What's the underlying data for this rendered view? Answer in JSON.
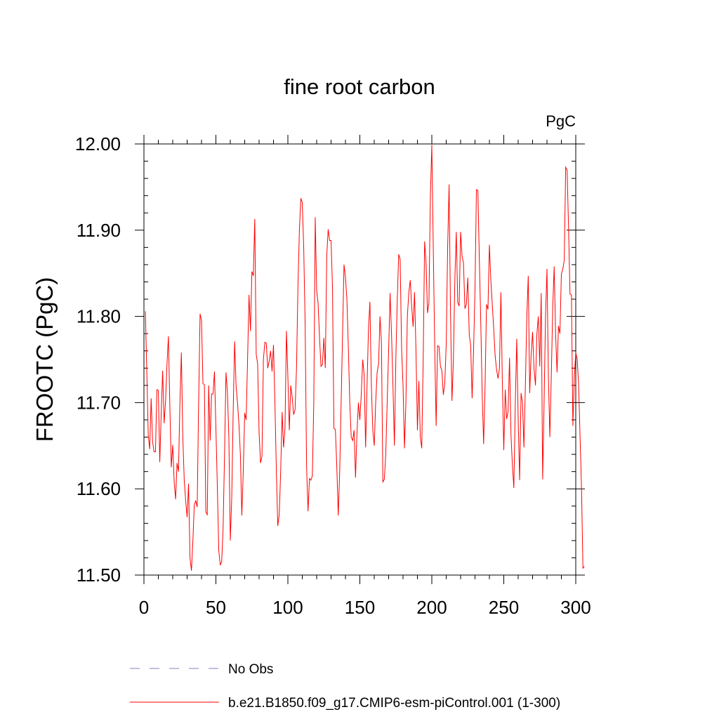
{
  "chart_data": {
    "type": "line",
    "title": "fine root carbon",
    "units": "PgC",
    "xlabel": "",
    "ylabel": "FROOTC  (PgC)",
    "xlim": [
      0,
      300
    ],
    "ylim": [
      11.5,
      12.0
    ],
    "x_ticks": [
      0,
      50,
      100,
      150,
      200,
      250,
      300
    ],
    "x_tick_labels": [
      "0",
      "50",
      "100",
      "150",
      "200",
      "250",
      "300"
    ],
    "y_ticks": [
      11.5,
      11.6,
      11.7,
      11.8,
      11.9,
      12.0
    ],
    "y_tick_labels": [
      "11.50",
      "11.60",
      "11.70",
      "11.80",
      "11.90",
      "12.00"
    ],
    "grid": false,
    "legend_position": "bottom",
    "colors": {
      "model": "#ff0000",
      "obs": "#8080c0",
      "axis": "#000000"
    },
    "series": [
      {
        "name": "b.e21.B1850.f09_g17.CMIP6-esm-piControl.001 (1-300)",
        "x_start": 1,
        "x_step": 1,
        "values": [
          11.806,
          11.735,
          11.662,
          11.646,
          11.705,
          11.655,
          11.643,
          11.643,
          11.715,
          11.714,
          11.631,
          11.688,
          11.737,
          11.676,
          11.701,
          11.744,
          11.777,
          11.696,
          11.625,
          11.651,
          11.608,
          11.588,
          11.63,
          11.62,
          11.7,
          11.758,
          11.66,
          11.61,
          11.586,
          11.567,
          11.606,
          11.52,
          11.505,
          11.54,
          11.582,
          11.586,
          11.579,
          11.7,
          11.803,
          11.795,
          11.722,
          11.721,
          11.573,
          11.57,
          11.72,
          11.656,
          11.71,
          11.71,
          11.736,
          11.67,
          11.602,
          11.528,
          11.512,
          11.515,
          11.555,
          11.64,
          11.735,
          11.712,
          11.66,
          11.54,
          11.59,
          11.69,
          11.771,
          11.72,
          11.7,
          11.675,
          11.64,
          11.569,
          11.62,
          11.688,
          11.68,
          11.75,
          11.825,
          11.783,
          11.852,
          11.847,
          11.913,
          11.756,
          11.745,
          11.665,
          11.63,
          11.638,
          11.75,
          11.77,
          11.769,
          11.74,
          11.748,
          11.76,
          11.736,
          11.767,
          11.7,
          11.62,
          11.557,
          11.57,
          11.62,
          11.689,
          11.648,
          11.67,
          11.783,
          11.73,
          11.668,
          11.72,
          11.706,
          11.686,
          11.692,
          11.74,
          11.835,
          11.9,
          11.937,
          11.932,
          11.88,
          11.79,
          11.625,
          11.574,
          11.612,
          11.61,
          11.615,
          11.7,
          11.915,
          11.83,
          11.815,
          11.775,
          11.742,
          11.744,
          11.775,
          11.74,
          11.87,
          11.901,
          11.888,
          11.888,
          11.833,
          11.67,
          11.669,
          11.625,
          11.569,
          11.62,
          11.7,
          11.78,
          11.86,
          11.845,
          11.82,
          11.765,
          11.7,
          11.66,
          11.656,
          11.668,
          11.613,
          11.665,
          11.7,
          11.68,
          11.71,
          11.75,
          11.732,
          11.648,
          11.72,
          11.786,
          11.817,
          11.72,
          11.668,
          11.65,
          11.7,
          11.735,
          11.745,
          11.8,
          11.77,
          11.608,
          11.611,
          11.64,
          11.701,
          11.76,
          11.827,
          11.78,
          11.72,
          11.65,
          11.75,
          11.82,
          11.872,
          11.866,
          11.763,
          11.72,
          11.647,
          11.7,
          11.8,
          11.827,
          11.842,
          11.812,
          11.788,
          11.828,
          11.76,
          11.668,
          11.725,
          11.66,
          11.647,
          11.75,
          11.887,
          11.862,
          11.804,
          11.816,
          11.94,
          11.999,
          11.88,
          11.766,
          11.673,
          11.766,
          11.765,
          11.742,
          11.737,
          11.709,
          11.722,
          11.768,
          11.88,
          11.953,
          11.803,
          11.702,
          11.75,
          11.843,
          11.898,
          11.816,
          11.812,
          11.898,
          11.87,
          11.862,
          11.809,
          11.814,
          11.845,
          11.779,
          11.766,
          11.705,
          11.76,
          11.832,
          11.947,
          11.946,
          11.867,
          11.794,
          11.709,
          11.652,
          11.72,
          11.814,
          11.808,
          11.883,
          11.842,
          11.814,
          11.786,
          11.754,
          11.738,
          11.728,
          11.74,
          11.828,
          11.724,
          11.645,
          11.715,
          11.681,
          11.69,
          11.752,
          11.662,
          11.627,
          11.601,
          11.7,
          11.774,
          11.68,
          11.61,
          11.711,
          11.7,
          11.648,
          11.72,
          11.8,
          11.847,
          11.711,
          11.755,
          11.782,
          11.74,
          11.72,
          11.78,
          11.8,
          11.742,
          11.827,
          11.611,
          11.7,
          11.8,
          11.855,
          11.73,
          11.66,
          11.73,
          11.81,
          11.858,
          11.78,
          11.735,
          11.789,
          11.78,
          11.849,
          11.855,
          11.865,
          11.973,
          11.97,
          11.902,
          11.826,
          11.825,
          11.673,
          11.73,
          11.758,
          11.75,
          11.72,
          11.66,
          11.6,
          11.508,
          11.51
        ]
      },
      {
        "name": "No Obs",
        "values": []
      }
    ]
  }
}
